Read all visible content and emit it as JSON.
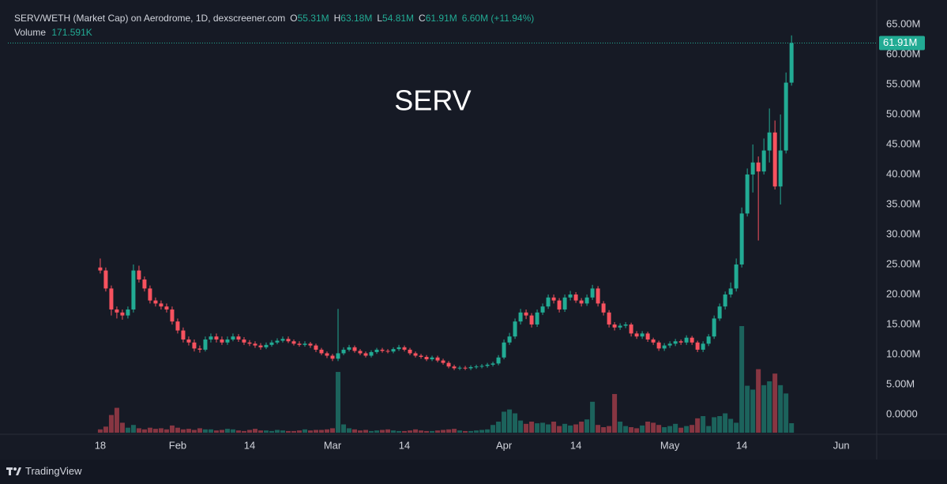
{
  "header": {
    "symbol": "SERV/WETH (Market Cap) on Aerodrome, 1D, dexscreener.com",
    "o_key": "O",
    "o": "55.31M",
    "h_key": "H",
    "h": "63.18M",
    "l_key": "L",
    "l": "54.81M",
    "c_key": "C",
    "c": "61.91M",
    "change": "6.60M (+11.94%)"
  },
  "chart_data": {
    "type": "candlestick",
    "title": "SERV",
    "ohlc": [
      [
        24.5,
        26,
        23.5,
        24
      ],
      [
        24,
        24.5,
        20.5,
        21
      ],
      [
        21,
        21.5,
        16.5,
        17.5
      ],
      [
        17.5,
        18,
        16,
        17
      ],
      [
        17,
        17.5,
        15.8,
        16.5
      ],
      [
        16.5,
        18,
        16,
        17.5
      ],
      [
        17.5,
        25,
        17,
        24
      ],
      [
        24,
        24.8,
        22,
        22.5
      ],
      [
        22.5,
        23,
        20.5,
        21
      ],
      [
        21,
        21.5,
        18.5,
        19
      ],
      [
        19,
        19.5,
        18,
        18.5
      ],
      [
        18.5,
        19,
        17.5,
        18
      ],
      [
        18,
        18.5,
        17,
        17.5
      ],
      [
        17.5,
        18,
        15,
        15.5
      ],
      [
        15.5,
        16,
        13.5,
        14
      ],
      [
        14,
        14.5,
        12,
        12.5
      ],
      [
        12.5,
        13,
        11.5,
        12
      ],
      [
        12,
        12.5,
        10.5,
        11
      ],
      [
        11,
        11.5,
        10.3,
        10.8
      ],
      [
        10.8,
        13,
        10.5,
        12.5
      ],
      [
        12.5,
        13.5,
        12,
        13
      ],
      [
        13,
        13.5,
        12,
        12.5
      ],
      [
        12.5,
        13,
        11.6,
        12
      ],
      [
        12,
        13,
        11.6,
        12.5
      ],
      [
        12.5,
        13.5,
        12.2,
        13
      ],
      [
        13,
        13.4,
        12.1,
        12.5
      ],
      [
        12.5,
        12.9,
        11.6,
        12
      ],
      [
        12,
        12.4,
        11.4,
        11.8
      ],
      [
        11.8,
        12.2,
        11.1,
        11.5
      ],
      [
        11.5,
        11.9,
        10.8,
        11.2
      ],
      [
        11.2,
        12,
        10.9,
        11.6
      ],
      [
        11.6,
        12.4,
        11.3,
        12
      ],
      [
        12,
        12.7,
        11.7,
        12.3
      ],
      [
        12.3,
        13,
        12,
        12.6
      ],
      [
        12.6,
        13,
        11.9,
        12.2
      ],
      [
        12.2,
        12.5,
        11.5,
        11.8
      ],
      [
        11.8,
        12.2,
        11.3,
        11.6
      ],
      [
        11.6,
        12.2,
        11.3,
        11.8
      ],
      [
        11.8,
        12.1,
        11.1,
        11.5
      ],
      [
        11.5,
        11.8,
        10.4,
        10.8
      ],
      [
        10.8,
        11.1,
        9.9,
        10.2
      ],
      [
        10.2,
        10.5,
        9.4,
        9.8
      ],
      [
        9.8,
        10.1,
        8.9,
        9.3
      ],
      [
        9.3,
        17.6,
        8.9,
        10.2
      ],
      [
        10.2,
        11.2,
        9.9,
        10.8
      ],
      [
        10.8,
        11.6,
        10.5,
        11.2
      ],
      [
        11.2,
        11.5,
        10.3,
        10.6
      ],
      [
        10.6,
        10.9,
        9.9,
        10.2
      ],
      [
        10.2,
        10.5,
        9.5,
        9.8
      ],
      [
        9.8,
        10.7,
        9.5,
        10.4
      ],
      [
        10.4,
        11.1,
        10.1,
        10.8
      ],
      [
        10.8,
        11.1,
        10.3,
        10.6
      ],
      [
        10.6,
        10.9,
        10.2,
        10.5
      ],
      [
        10.5,
        11.2,
        10.2,
        10.9
      ],
      [
        10.9,
        11.6,
        10.6,
        11.2
      ],
      [
        11.2,
        11.5,
        10.5,
        10.8
      ],
      [
        10.8,
        11.1,
        9.9,
        10.2
      ],
      [
        10.2,
        10.5,
        9.5,
        9.8
      ],
      [
        9.8,
        10.1,
        9.3,
        9.6
      ],
      [
        9.6,
        9.9,
        8.9,
        9.2
      ],
      [
        9.2,
        9.8,
        8.9,
        9.5
      ],
      [
        9.5,
        9.8,
        8.7,
        9
      ],
      [
        9,
        9.3,
        8.3,
        8.6
      ],
      [
        8.6,
        8.9,
        7.7,
        8
      ],
      [
        8,
        8.3,
        7.4,
        7.7
      ],
      [
        7.7,
        8.1,
        7.4,
        7.8
      ],
      [
        7.8,
        8.1,
        7.4,
        7.7
      ],
      [
        7.7,
        8.2,
        7.4,
        7.9
      ],
      [
        7.9,
        8.3,
        7.6,
        8
      ],
      [
        8,
        8.4,
        7.7,
        8.1
      ],
      [
        8.1,
        8.6,
        7.8,
        8.3
      ],
      [
        8.3,
        8.8,
        8,
        8.5
      ],
      [
        8.5,
        9.9,
        8.2,
        9.5
      ],
      [
        9.5,
        12.5,
        9.2,
        12
      ],
      [
        12,
        13.6,
        11.6,
        13
      ],
      [
        13,
        16,
        12.6,
        15.5
      ],
      [
        15.5,
        17.6,
        15,
        17
      ],
      [
        17,
        17.5,
        15.9,
        16.5
      ],
      [
        16.5,
        16.9,
        14.5,
        15
      ],
      [
        15,
        17.5,
        14.6,
        17
      ],
      [
        17,
        18.5,
        16.6,
        18
      ],
      [
        18,
        20,
        17.6,
        19.5
      ],
      [
        19.5,
        20,
        18.5,
        19
      ],
      [
        19,
        19.4,
        17,
        17.5
      ],
      [
        17.5,
        20,
        17.1,
        19.5
      ],
      [
        19.5,
        20.6,
        19,
        20
      ],
      [
        20,
        20.4,
        18.6,
        19
      ],
      [
        19,
        19.4,
        18,
        18.5
      ],
      [
        18.5,
        20,
        18.1,
        19.5
      ],
      [
        19.5,
        21.6,
        19.1,
        21
      ],
      [
        21,
        21.4,
        18,
        18.5
      ],
      [
        18.5,
        18.9,
        16.5,
        17
      ],
      [
        17,
        17.4,
        14.5,
        15
      ],
      [
        15,
        15.4,
        14,
        14.5
      ],
      [
        14.5,
        15.2,
        14.1,
        14.8
      ],
      [
        14.8,
        15.4,
        14.4,
        15
      ],
      [
        15,
        15.3,
        13,
        13.5
      ],
      [
        13.5,
        13.9,
        12.6,
        13
      ],
      [
        13,
        13.9,
        12.6,
        13.5
      ],
      [
        13.5,
        13.8,
        12.1,
        12.5
      ],
      [
        12.5,
        12.8,
        11.6,
        12
      ],
      [
        12,
        12.3,
        10.6,
        11
      ],
      [
        11,
        11.9,
        10.6,
        11.5
      ],
      [
        11.5,
        12.2,
        11.1,
        11.8
      ],
      [
        11.8,
        12.6,
        11.4,
        12.2
      ],
      [
        12.2,
        12.5,
        11.6,
        12
      ],
      [
        12,
        13.2,
        11.6,
        12.8
      ],
      [
        12.8,
        13.1,
        11.6,
        12
      ],
      [
        12,
        12.3,
        10.4,
        10.8
      ],
      [
        10.8,
        12.2,
        10.4,
        11.8
      ],
      [
        11.8,
        13.4,
        11.4,
        13
      ],
      [
        13,
        16.5,
        12.6,
        16
      ],
      [
        16,
        18.5,
        15.6,
        18
      ],
      [
        18,
        20.5,
        17.5,
        20
      ],
      [
        20,
        22,
        19.5,
        21
      ],
      [
        21,
        26,
        20.5,
        25
      ],
      [
        25,
        34.5,
        24.5,
        33.5
      ],
      [
        33.5,
        41,
        33,
        40
      ],
      [
        40,
        45,
        37,
        42
      ],
      [
        42,
        43,
        29,
        40.5
      ],
      [
        40.5,
        46,
        40,
        44
      ],
      [
        44,
        51,
        42,
        47
      ],
      [
        47,
        49,
        37.5,
        38
      ],
      [
        38,
        50,
        35,
        44
      ],
      [
        44,
        57,
        43.5,
        55.31
      ],
      [
        55.31,
        63.18,
        54.81,
        61.91
      ]
    ],
    "volume": [
      60,
      110,
      320,
      450,
      180,
      90,
      140,
      80,
      60,
      90,
      70,
      80,
      60,
      130,
      90,
      60,
      70,
      50,
      80,
      60,
      60,
      40,
      50,
      70,
      60,
      40,
      30,
      50,
      70,
      40,
      40,
      30,
      50,
      40,
      30,
      30,
      40,
      60,
      40,
      50,
      50,
      60,
      80,
      1100,
      150,
      80,
      60,
      40,
      50,
      30,
      40,
      50,
      60,
      40,
      30,
      30,
      40,
      60,
      40,
      30,
      30,
      40,
      50,
      60,
      70,
      40,
      30,
      30,
      40,
      50,
      60,
      140,
      200,
      380,
      420,
      350,
      220,
      160,
      200,
      170,
      180,
      150,
      200,
      120,
      160,
      130,
      150,
      200,
      240,
      560,
      140,
      100,
      120,
      700,
      200,
      120,
      100,
      80,
      130,
      200,
      180,
      140,
      100,
      120,
      160,
      90,
      120,
      140,
      260,
      300,
      120,
      280,
      300,
      350,
      250,
      180,
      1930,
      850,
      780,
      1150,
      860,
      930,
      1070,
      860,
      710,
      171.591
    ],
    "volume_name": "Volume",
    "volume_value_label": "171.591K",
    "last_price_label": "61.91M",
    "up_color": "#22ab94",
    "down_color": "#f7525f",
    "xlim": [
      -16.7,
      140.4
    ],
    "xticks": [
      {
        "value": 0,
        "label": "18"
      },
      {
        "value": 14,
        "label": "Feb"
      },
      {
        "value": 27,
        "label": "14"
      },
      {
        "value": 42,
        "label": "Mar"
      },
      {
        "value": 55,
        "label": "14"
      },
      {
        "value": 73,
        "label": "Apr"
      },
      {
        "value": 86,
        "label": "14"
      },
      {
        "value": 103,
        "label": "May"
      },
      {
        "value": 116,
        "label": "14"
      },
      {
        "value": 134,
        "label": "Jun"
      }
    ],
    "ylim": [
      -3.03,
      69.08
    ],
    "yticks": [
      {
        "value": 0,
        "label": "0.0000"
      },
      {
        "value": 5,
        "label": "5.00M"
      },
      {
        "value": 10,
        "label": "10.00M"
      },
      {
        "value": 15,
        "label": "15.00M"
      },
      {
        "value": 20,
        "label": "20.00M"
      },
      {
        "value": 25,
        "label": "25.00M"
      },
      {
        "value": 30,
        "label": "30.00M"
      },
      {
        "value": 35,
        "label": "35.00M"
      },
      {
        "value": 40,
        "label": "40.00M"
      },
      {
        "value": 45,
        "label": "45.00M"
      },
      {
        "value": 50,
        "label": "50.00M"
      },
      {
        "value": 55,
        "label": "55.00M"
      },
      {
        "value": 60,
        "label": "60.00M"
      },
      {
        "value": 65,
        "label": "65.00M"
      }
    ],
    "grid": false
  },
  "footer": {
    "brand": "TradingView"
  }
}
